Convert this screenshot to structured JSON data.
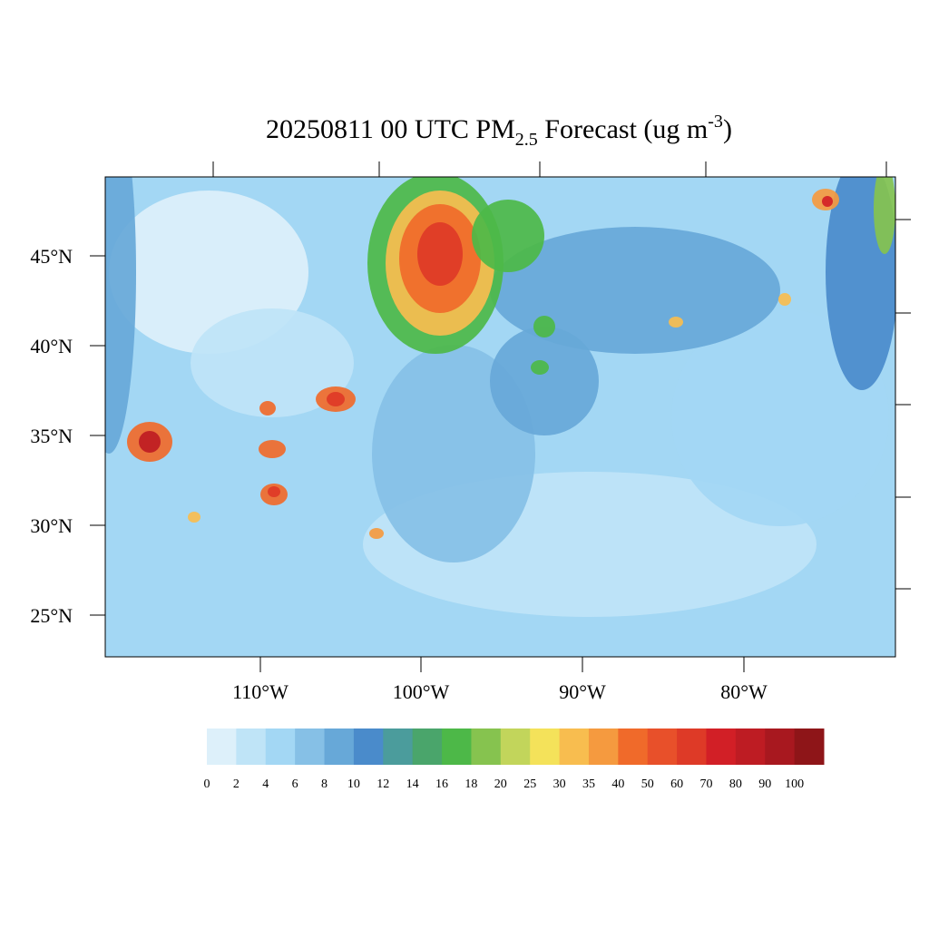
{
  "map": {
    "title": {
      "main": "20250811 00 UTC PM",
      "sub": "2.5",
      "rest": " Forecast (ug m",
      "sup": "-3",
      "end": ")"
    },
    "lat_labels": [
      "45°N",
      "40°N",
      "35°N",
      "30°N",
      "25°N"
    ],
    "lon_labels": [
      "110°W",
      "100°W",
      "90°W",
      "80°W"
    ],
    "colorbar": {
      "levels": [
        0,
        2,
        4,
        6,
        8,
        10,
        12,
        14,
        16,
        18,
        20,
        25,
        30,
        35,
        40,
        50,
        60,
        70,
        80,
        90,
        100
      ],
      "colors": [
        "#ddf0fa",
        "#bfe4f7",
        "#a3d7f4",
        "#86c0e6",
        "#67a8d8",
        "#4a8bcb",
        "#4b9c9c",
        "#4aa56b",
        "#4db848",
        "#86c34f",
        "#c2d55b",
        "#f4e25a",
        "#f8bd4f",
        "#f59a3f",
        "#f06a2a",
        "#e8502a",
        "#de3a27",
        "#d21f26",
        "#be1c23",
        "#a8181f",
        "#8e1518"
      ]
    }
  }
}
